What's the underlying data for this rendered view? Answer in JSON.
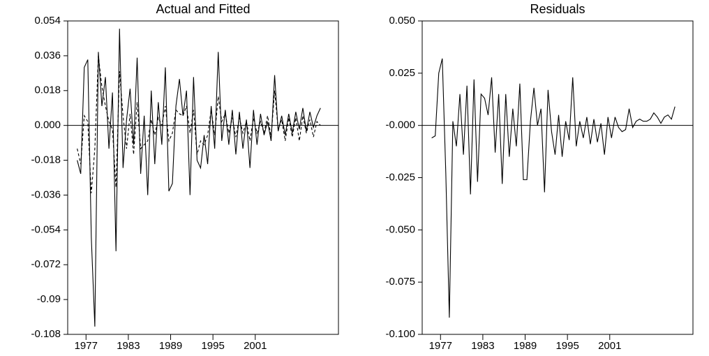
{
  "chart_data": [
    {
      "type": "line",
      "title": "Actual and Fitted",
      "x": [
        1975.75,
        1976.25,
        1976.75,
        1977.25,
        1977.75,
        1978.25,
        1978.75,
        1979.25,
        1979.75,
        1980.25,
        1980.75,
        1981.25,
        1981.75,
        1982.25,
        1982.75,
        1983.25,
        1983.75,
        1984.25,
        1984.75,
        1985.25,
        1985.75,
        1986.25,
        1986.75,
        1987.25,
        1987.75,
        1988.25,
        1988.75,
        1989.25,
        1989.75,
        1990.25,
        1990.75,
        1991.25,
        1991.75,
        1992.25,
        1992.75,
        1993.25,
        1993.75,
        1994.25,
        1994.75,
        1995.25,
        1995.75,
        1996.25,
        1996.75,
        1997.25,
        1997.75,
        1998.25,
        1998.75,
        1999.25,
        1999.75,
        2000.25,
        2000.75,
        2001.25,
        2001.75,
        2002.25,
        2002.75,
        2003.25,
        2003.75,
        2004.25,
        2004.75,
        2005.25,
        2005.75,
        2006.25,
        2006.75,
        2007.25,
        2007.75,
        2008.25,
        2008.75,
        2009.25,
        2009.75,
        2010.25
      ],
      "xlim": [
        1974.4,
        2012.8
      ],
      "xticks": [
        1977,
        1983,
        1989,
        1995,
        2001
      ],
      "ylim": [
        -0.108,
        0.054
      ],
      "yticks": [
        -0.108,
        -0.09,
        -0.072,
        -0.054,
        -0.036,
        -0.018,
        {
          "value": 0,
          "label": "0.000"
        },
        0.018,
        0.036,
        0.054
      ],
      "zero_line": true,
      "series": [
        {
          "color": "#000000",
          "style": "solid",
          "values": [
            -0.018,
            -0.025,
            0.03,
            0.034,
            -0.058,
            -0.104,
            0.038,
            0.01,
            0.025,
            -0.012,
            0.017,
            -0.065,
            0.05,
            -0.022,
            0.003,
            0.019,
            -0.01,
            0.035,
            -0.025,
            0.005,
            -0.036,
            0.018,
            -0.02,
            0.012,
            -0.01,
            0.03,
            -0.034,
            -0.03,
            0.01,
            0.024,
            0.005,
            0.018,
            -0.036,
            0.025,
            -0.018,
            -0.022,
            -0.005,
            -0.02,
            0.01,
            -0.012,
            0.038,
            -0.008,
            0.008,
            -0.01,
            0.008,
            -0.015,
            0.007,
            -0.012,
            0.003,
            -0.022,
            0.008,
            -0.01,
            0.006,
            -0.005,
            0.002,
            -0.008,
            0.026,
            -0.003,
            0.005,
            -0.005,
            0.006,
            -0.004,
            0.007,
            -0.002,
            0.009,
            -0.003,
            0.007,
            -0.001,
            0.005,
            0.009
          ]
        },
        {
          "color": "#000000",
          "style": "dashed",
          "values": [
            -0.012,
            -0.02,
            0.005,
            0.002,
            -0.035,
            -0.012,
            0.036,
            0.02,
            0.01,
            0.002,
            -0.002,
            -0.032,
            0.028,
            0.005,
            -0.012,
            0.006,
            -0.015,
            0.012,
            -0.012,
            -0.01,
            -0.008,
            0.003,
            -0.005,
            0.004,
            0,
            0.01,
            -0.008,
            -0.004,
            0.008,
            0.006,
            0.005,
            0.01,
            -0.004,
            0.008,
            -0.015,
            -0.008,
            -0.01,
            -0.005,
            0.008,
            -0.005,
            0.015,
            0.002,
            0.006,
            -0.004,
            0.004,
            -0.006,
            0.004,
            -0.004,
            0.002,
            -0.008,
            0.004,
            -0.004,
            0.002,
            -0.004,
            0.005,
            -0.006,
            0.018,
            -0.002,
            0.003,
            -0.008,
            0.004,
            -0.006,
            0.004,
            -0.008,
            0.005,
            -0.004,
            0.003,
            -0.006,
            0.002,
            0
          ]
        }
      ]
    },
    {
      "type": "line",
      "title": "Residuals",
      "x": [
        1975.75,
        1976.25,
        1976.75,
        1977.25,
        1977.75,
        1978.25,
        1978.75,
        1979.25,
        1979.75,
        1980.25,
        1980.75,
        1981.25,
        1981.75,
        1982.25,
        1982.75,
        1983.25,
        1983.75,
        1984.25,
        1984.75,
        1985.25,
        1985.75,
        1986.25,
        1986.75,
        1987.25,
        1987.75,
        1988.25,
        1988.75,
        1989.25,
        1989.75,
        1990.25,
        1990.75,
        1991.25,
        1991.75,
        1992.25,
        1992.75,
        1993.25,
        1993.75,
        1994.25,
        1994.75,
        1995.25,
        1995.75,
        1996.25,
        1996.75,
        1997.25,
        1997.75,
        1998.25,
        1998.75,
        1999.25,
        1999.75,
        2000.25,
        2000.75,
        2001.25,
        2001.75,
        2002.25,
        2002.75,
        2003.25,
        2003.75,
        2004.25,
        2004.75,
        2005.25,
        2005.75,
        2006.25,
        2006.75,
        2007.25,
        2007.75,
        2008.25,
        2008.75,
        2009.25,
        2009.75,
        2010.25
      ],
      "xlim": [
        1974.4,
        2012.8
      ],
      "xticks": [
        1977,
        1983,
        1989,
        1995,
        2001
      ],
      "ylim": [
        -0.1,
        0.05
      ],
      "yticks": [
        {
          "value": -0.1,
          "label": "-0.100"
        },
        -0.075,
        {
          "value": -0.05,
          "label": "-0.050"
        },
        -0.025,
        {
          "value": 0,
          "label": "-0.000"
        },
        0.025,
        {
          "value": 0.05,
          "label": "0.050"
        }
      ],
      "zero_line": true,
      "series": [
        {
          "color": "#000000",
          "style": "solid",
          "values": [
            -0.006,
            -0.005,
            0.025,
            0.032,
            -0.023,
            -0.092,
            0.002,
            -0.01,
            0.015,
            -0.014,
            0.019,
            -0.033,
            0.022,
            -0.027,
            0.015,
            0.013,
            0.005,
            0.023,
            -0.013,
            0.015,
            -0.028,
            0.015,
            -0.015,
            0.008,
            -0.01,
            0.02,
            -0.026,
            -0.026,
            0.002,
            0.018,
            0,
            0.008,
            -0.032,
            0.017,
            -0.003,
            -0.014,
            0.005,
            -0.015,
            0.002,
            -0.007,
            0.023,
            -0.01,
            0.002,
            -0.006,
            0.004,
            -0.009,
            0.003,
            -0.008,
            0.001,
            -0.014,
            0.004,
            -0.006,
            0.004,
            -0.001,
            -0.003,
            -0.002,
            0.008,
            -0.001,
            0.002,
            0.003,
            0.002,
            0.002,
            0.003,
            0.006,
            0.004,
            0.001,
            0.004,
            0.005,
            0.003,
            0.009
          ]
        }
      ]
    }
  ]
}
